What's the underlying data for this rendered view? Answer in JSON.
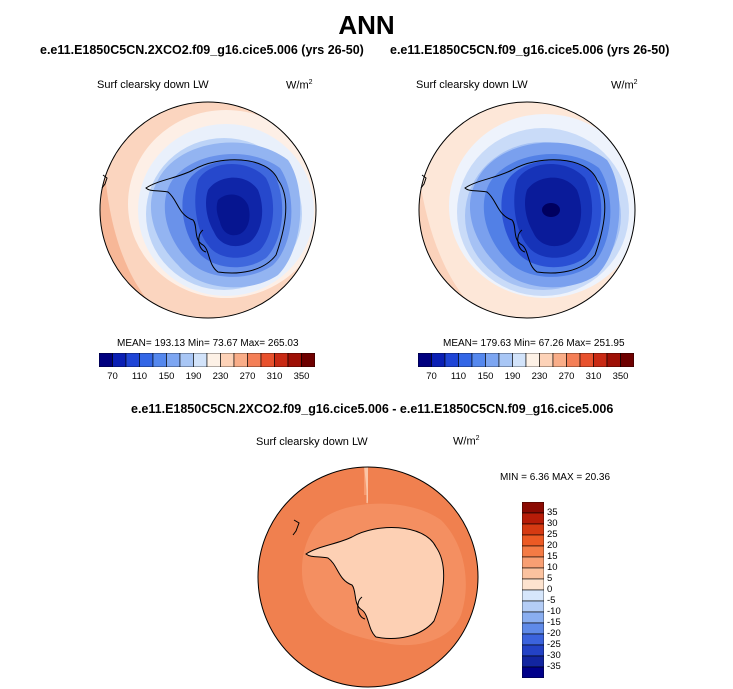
{
  "header": {
    "title": "ANN"
  },
  "panels": [
    {
      "case_title": "e.e11.E1850C5CN.2XCO2.f09_g16.cice5.006 (yrs 26-50)",
      "variable": "Surf clearsky down LW",
      "units_base": "W/m",
      "units_exp": "2",
      "stats": "MEAN= 193.13  Min=  73.67  Max= 265.03",
      "mean": 193.13,
      "min": 73.67,
      "max": 265.03
    },
    {
      "case_title": "e.e11.E1850C5CN.f09_g16.cice5.006 (yrs 26-50)",
      "variable": "Surf clearsky down LW",
      "units_base": "W/m",
      "units_exp": "2",
      "stats": "MEAN= 179.63  Min=  67.26  Max= 251.95",
      "mean": 179.63,
      "min": 67.26,
      "max": 251.95
    },
    {
      "case_title": "e.e11.E1850C5CN.2XCO2.f09_g16.cice5.006 - e.e11.E1850C5CN.f09_g16.cice5.006",
      "variable": "Surf clearsky down LW",
      "units_base": "W/m",
      "units_exp": "2",
      "stats": "MIN =   6.36 MAX =  20.36",
      "min": 6.36,
      "max": 20.36
    }
  ],
  "horizontal_colorbar": {
    "levels": [
      70,
      90,
      110,
      130,
      150,
      170,
      190,
      210,
      230,
      250,
      270,
      290,
      310,
      330,
      350
    ],
    "tick_labels": [
      "70",
      "110",
      "150",
      "190",
      "230",
      "270",
      "310",
      "350"
    ],
    "colors": [
      "#00007f",
      "#0a1fb4",
      "#1f45d6",
      "#3366e6",
      "#5588ee",
      "#7da6f2",
      "#a8c6f5",
      "#d2e3fa",
      "#fdf1e6",
      "#fdd2b7",
      "#f9ad88",
      "#f47f57",
      "#e8512d",
      "#c92a14",
      "#9e1005",
      "#6e0000"
    ]
  },
  "vertical_colorbar": {
    "levels": [
      -35,
      -30,
      -25,
      -20,
      -15,
      -10,
      -5,
      0,
      5,
      10,
      15,
      20,
      25,
      30,
      35
    ],
    "tick_labels": [
      "35",
      "30",
      "25",
      "20",
      "15",
      "10",
      "5",
      "0",
      "-5",
      "-10",
      "-15",
      "-20",
      "-25",
      "-30",
      "-35"
    ],
    "colors_top_down": [
      "#8b0a02",
      "#b71c08",
      "#d63a12",
      "#ec5a24",
      "#f47b45",
      "#f89f73",
      "#fbc29f",
      "#fde3cf",
      "#d6e6fb",
      "#b4cdf6",
      "#8aaef0",
      "#5f8ae8",
      "#3b63dd",
      "#2342c5",
      "#1225a0",
      "#00008a"
    ]
  }
}
